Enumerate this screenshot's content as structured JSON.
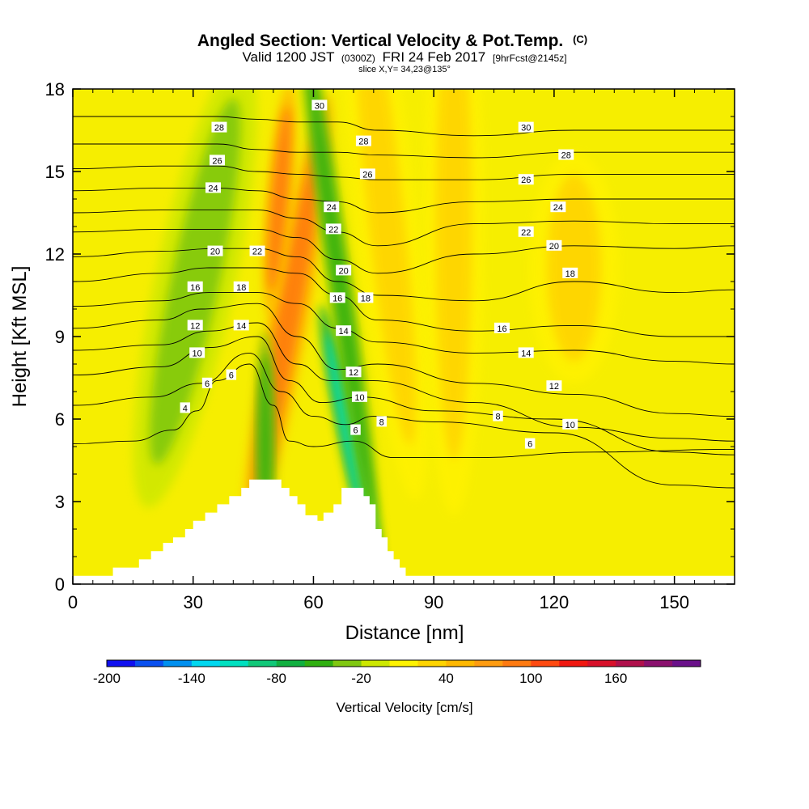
{
  "header": {
    "title": "Angled Section: Vertical Velocity & Pot.Temp.",
    "title_unit": "(C)",
    "valid_prefix": "Valid 1200 JST",
    "valid_utc": "(0300Z)",
    "valid_date": "FRI 24 Feb 2017",
    "forecast": "[9hrFcst@2145z]",
    "slice": "slice X,Y= 34,23@135°"
  },
  "chart_data": {
    "type": "heatmap",
    "xlabel": "Distance [nm]",
    "ylabel": "Height [Kft MSL]",
    "xlim": [
      0,
      165
    ],
    "ylim": [
      0,
      18
    ],
    "x_ticks": [
      0,
      30,
      60,
      90,
      120,
      150
    ],
    "y_ticks": [
      0,
      3,
      6,
      9,
      12,
      15,
      18
    ],
    "terrain": [
      [
        0,
        0.3
      ],
      [
        10,
        0.3
      ],
      [
        10,
        0.6
      ],
      [
        16.5,
        0.6
      ],
      [
        16.5,
        0.9
      ],
      [
        19.5,
        0.9
      ],
      [
        19.5,
        1.2
      ],
      [
        22.5,
        1.2
      ],
      [
        22.5,
        1.5
      ],
      [
        25,
        1.5
      ],
      [
        25,
        1.7
      ],
      [
        28,
        1.7
      ],
      [
        28,
        2.0
      ],
      [
        30,
        2.0
      ],
      [
        30,
        2.3
      ],
      [
        33,
        2.3
      ],
      [
        33,
        2.6
      ],
      [
        36,
        2.6
      ],
      [
        36,
        2.9
      ],
      [
        39,
        2.9
      ],
      [
        39,
        3.2
      ],
      [
        42,
        3.2
      ],
      [
        42,
        3.5
      ],
      [
        44,
        3.5
      ],
      [
        44,
        3.8
      ],
      [
        52,
        3.8
      ],
      [
        52,
        3.5
      ],
      [
        54,
        3.5
      ],
      [
        54,
        3.2
      ],
      [
        56,
        3.2
      ],
      [
        56,
        2.9
      ],
      [
        58,
        2.9
      ],
      [
        58,
        2.5
      ],
      [
        61,
        2.5
      ],
      [
        61,
        2.3
      ],
      [
        62.5,
        2.3
      ],
      [
        62.5,
        2.6
      ],
      [
        65,
        2.6
      ],
      [
        65,
        2.9
      ],
      [
        67,
        2.9
      ],
      [
        67,
        3.5
      ],
      [
        72.5,
        3.5
      ],
      [
        72.5,
        3.2
      ],
      [
        74,
        3.2
      ],
      [
        74,
        2.9
      ],
      [
        75.5,
        2.9
      ],
      [
        75.5,
        2.0
      ],
      [
        77,
        2.0
      ],
      [
        77,
        1.7
      ],
      [
        78.5,
        1.7
      ],
      [
        78.5,
        1.2
      ],
      [
        80,
        1.2
      ],
      [
        80,
        0.9
      ],
      [
        81.5,
        0.9
      ],
      [
        81.5,
        0.6
      ],
      [
        83,
        0.6
      ],
      [
        83,
        0.3
      ],
      [
        165,
        0.3
      ]
    ],
    "velocity_features": [
      {
        "kind": "updraft",
        "x": 53.5,
        "y": 9.5,
        "w": 4,
        "h": 8,
        "angle": 10,
        "value": 90
      },
      {
        "kind": "updraft",
        "x": 51.5,
        "y": 14.0,
        "w": 2.6,
        "h": 4,
        "angle": 5,
        "value": 80
      },
      {
        "kind": "downdraft",
        "x": 69.5,
        "y": 5.0,
        "w": 2.2,
        "h": 5,
        "angle": -12,
        "value": -110
      },
      {
        "kind": "downdraft",
        "x": 66.5,
        "y": 11.0,
        "w": 2.5,
        "h": 10,
        "angle": -8,
        "value": -50
      },
      {
        "kind": "downdraft",
        "x": 48.0,
        "y": 5.0,
        "w": 2.0,
        "h": 4,
        "angle": 0,
        "value": -50
      },
      {
        "kind": "downdraft",
        "x": 30.5,
        "y": 11.0,
        "w": 8,
        "h": 8,
        "angle": 12,
        "value": -30
      },
      {
        "kind": "updraft",
        "x": 78.0,
        "y": 13.5,
        "w": 6,
        "h": 10,
        "angle": -6,
        "value": 30
      },
      {
        "kind": "updraft",
        "x": 95.0,
        "y": 13.0,
        "w": 6,
        "h": 10,
        "angle": 0,
        "value": 25
      },
      {
        "kind": "updraft",
        "x": 125.0,
        "y": 11.5,
        "w": 9,
        "h": 4,
        "angle": 0,
        "value": 20
      }
    ],
    "isentropes": [
      {
        "level": 4,
        "points": [
          [
            0,
            5.1
          ],
          [
            15,
            5.2
          ],
          [
            25,
            5.6
          ],
          [
            31,
            6.3
          ],
          [
            36,
            7.4
          ],
          [
            44,
            8.0
          ],
          [
            50,
            6.5
          ],
          [
            54,
            5.2
          ],
          [
            60,
            5.0
          ],
          [
            70,
            5.2
          ],
          [
            80,
            4.6
          ],
          [
            100,
            4.6
          ],
          [
            130,
            4.8
          ],
          [
            165,
            4.9
          ]
        ]
      },
      {
        "level": 6,
        "points": [
          [
            0,
            6.5
          ],
          [
            20,
            6.8
          ],
          [
            32,
            7.3
          ],
          [
            44,
            8.4
          ],
          [
            52,
            7.0
          ],
          [
            60,
            6.1
          ],
          [
            68,
            5.8
          ],
          [
            75,
            6.1
          ],
          [
            90,
            5.9
          ],
          [
            120,
            5.5
          ],
          [
            150,
            3.6
          ],
          [
            165,
            3.5
          ]
        ]
      },
      {
        "level": 8,
        "points": [
          [
            0,
            7.6
          ],
          [
            22,
            7.9
          ],
          [
            34,
            8.6
          ],
          [
            46,
            9.0
          ],
          [
            54,
            7.4
          ],
          [
            62,
            6.6
          ],
          [
            72,
            6.8
          ],
          [
            90,
            6.3
          ],
          [
            120,
            6.0
          ],
          [
            150,
            4.8
          ],
          [
            165,
            4.7
          ]
        ]
      },
      {
        "level": 10,
        "points": [
          [
            0,
            8.5
          ],
          [
            22,
            8.7
          ],
          [
            34,
            9.2
          ],
          [
            46,
            9.5
          ],
          [
            56,
            8.0
          ],
          [
            64,
            7.4
          ],
          [
            74,
            7.4
          ],
          [
            100,
            6.6
          ],
          [
            125,
            5.7
          ],
          [
            150,
            5.3
          ],
          [
            165,
            5.2
          ]
        ]
      },
      {
        "level": 12,
        "points": [
          [
            0,
            9.3
          ],
          [
            22,
            9.6
          ],
          [
            32,
            10.0
          ],
          [
            46,
            10.2
          ],
          [
            56,
            9.0
          ],
          [
            66,
            7.8
          ],
          [
            76,
            8.0
          ],
          [
            100,
            7.3
          ],
          [
            125,
            6.9
          ],
          [
            150,
            6.2
          ],
          [
            165,
            6.1
          ]
        ]
      },
      {
        "level": 14,
        "points": [
          [
            0,
            10.1
          ],
          [
            22,
            10.3
          ],
          [
            34,
            10.6
          ],
          [
            46,
            10.6
          ],
          [
            56,
            10.2
          ],
          [
            66,
            9.3
          ],
          [
            76,
            8.8
          ],
          [
            100,
            8.4
          ],
          [
            125,
            8.5
          ],
          [
            150,
            8.1
          ],
          [
            165,
            8.0
          ]
        ]
      },
      {
        "level": 16,
        "points": [
          [
            0,
            11.0
          ],
          [
            22,
            11.3
          ],
          [
            34,
            11.5
          ],
          [
            46,
            11.5
          ],
          [
            56,
            11.3
          ],
          [
            66,
            10.5
          ],
          [
            76,
            9.6
          ],
          [
            100,
            9.2
          ],
          [
            125,
            9.4
          ],
          [
            150,
            9.0
          ],
          [
            165,
            9.0
          ]
        ]
      },
      {
        "level": 18,
        "points": [
          [
            0,
            11.9
          ],
          [
            22,
            12.1
          ],
          [
            36,
            12.2
          ],
          [
            46,
            12.2
          ],
          [
            56,
            11.9
          ],
          [
            66,
            11.0
          ],
          [
            76,
            10.5
          ],
          [
            100,
            10.3
          ],
          [
            125,
            11.0
          ],
          [
            150,
            10.6
          ],
          [
            165,
            10.7
          ]
        ]
      },
      {
        "level": 20,
        "points": [
          [
            0,
            12.8
          ],
          [
            22,
            12.9
          ],
          [
            36,
            12.9
          ],
          [
            46,
            12.9
          ],
          [
            56,
            12.6
          ],
          [
            66,
            11.8
          ],
          [
            76,
            11.3
          ],
          [
            100,
            12.0
          ],
          [
            125,
            12.3
          ],
          [
            150,
            12.2
          ],
          [
            165,
            12.3
          ]
        ]
      },
      {
        "level": 22,
        "points": [
          [
            0,
            13.5
          ],
          [
            22,
            13.6
          ],
          [
            36,
            13.6
          ],
          [
            46,
            13.6
          ],
          [
            56,
            13.3
          ],
          [
            66,
            12.8
          ],
          [
            76,
            12.3
          ],
          [
            100,
            13.1
          ],
          [
            125,
            13.2
          ],
          [
            150,
            13.1
          ],
          [
            165,
            13.1
          ]
        ]
      },
      {
        "level": 24,
        "points": [
          [
            0,
            14.3
          ],
          [
            22,
            14.4
          ],
          [
            36,
            14.4
          ],
          [
            46,
            14.3
          ],
          [
            56,
            14.0
          ],
          [
            66,
            13.9
          ],
          [
            76,
            13.5
          ],
          [
            100,
            13.9
          ],
          [
            125,
            14.0
          ],
          [
            150,
            14.0
          ],
          [
            165,
            14.0
          ]
        ]
      },
      {
        "level": 26,
        "points": [
          [
            0,
            15.1
          ],
          [
            22,
            15.2
          ],
          [
            36,
            15.2
          ],
          [
            46,
            15.0
          ],
          [
            56,
            14.9
          ],
          [
            66,
            14.8
          ],
          [
            76,
            14.7
          ],
          [
            100,
            14.7
          ],
          [
            125,
            14.9
          ],
          [
            150,
            14.9
          ],
          [
            165,
            14.9
          ]
        ]
      },
      {
        "level": 28,
        "points": [
          [
            0,
            16.0
          ],
          [
            22,
            16.0
          ],
          [
            36,
            16.0
          ],
          [
            46,
            15.8
          ],
          [
            56,
            15.7
          ],
          [
            66,
            15.7
          ],
          [
            76,
            15.6
          ],
          [
            100,
            15.5
          ],
          [
            125,
            15.7
          ],
          [
            150,
            15.7
          ],
          [
            165,
            15.7
          ]
        ]
      },
      {
        "level": 30,
        "points": [
          [
            0,
            17.0
          ],
          [
            22,
            17.0
          ],
          [
            36,
            17.0
          ],
          [
            46,
            16.9
          ],
          [
            56,
            16.8
          ],
          [
            66,
            16.8
          ],
          [
            76,
            16.5
          ],
          [
            100,
            16.3
          ],
          [
            125,
            16.5
          ],
          [
            150,
            16.5
          ],
          [
            165,
            16.5
          ]
        ]
      }
    ],
    "contour_labels": [
      {
        "x": 28,
        "y": 6.4,
        "text": "4"
      },
      {
        "x": 33.5,
        "y": 7.3,
        "text": "6"
      },
      {
        "x": 39.5,
        "y": 7.6,
        "text": "6"
      },
      {
        "x": 31,
        "y": 8.4,
        "text": "10"
      },
      {
        "x": 30.5,
        "y": 9.4,
        "text": "12"
      },
      {
        "x": 42,
        "y": 9.4,
        "text": "14"
      },
      {
        "x": 30.5,
        "y": 10.8,
        "text": "16"
      },
      {
        "x": 42,
        "y": 10.8,
        "text": "18"
      },
      {
        "x": 35.5,
        "y": 12.1,
        "text": "20"
      },
      {
        "x": 46,
        "y": 12.1,
        "text": "22"
      },
      {
        "x": 35,
        "y": 14.4,
        "text": "24"
      },
      {
        "x": 36,
        "y": 15.4,
        "text": "26"
      },
      {
        "x": 36.5,
        "y": 16.6,
        "text": "28"
      },
      {
        "x": 61.5,
        "y": 17.4,
        "text": "30"
      },
      {
        "x": 72.5,
        "y": 16.1,
        "text": "28"
      },
      {
        "x": 73.5,
        "y": 14.9,
        "text": "26"
      },
      {
        "x": 64.5,
        "y": 13.7,
        "text": "24"
      },
      {
        "x": 65,
        "y": 12.9,
        "text": "22"
      },
      {
        "x": 67.5,
        "y": 11.4,
        "text": "20"
      },
      {
        "x": 66,
        "y": 10.4,
        "text": "16"
      },
      {
        "x": 73,
        "y": 10.4,
        "text": "18"
      },
      {
        "x": 67.5,
        "y": 9.2,
        "text": "14"
      },
      {
        "x": 70,
        "y": 7.7,
        "text": "12"
      },
      {
        "x": 71.5,
        "y": 6.8,
        "text": "10"
      },
      {
        "x": 70.5,
        "y": 5.6,
        "text": "6"
      },
      {
        "x": 77,
        "y": 5.9,
        "text": "8"
      },
      {
        "x": 113,
        "y": 16.6,
        "text": "30"
      },
      {
        "x": 123,
        "y": 15.6,
        "text": "28"
      },
      {
        "x": 113,
        "y": 14.7,
        "text": "26"
      },
      {
        "x": 121,
        "y": 13.7,
        "text": "24"
      },
      {
        "x": 113,
        "y": 12.8,
        "text": "22"
      },
      {
        "x": 120,
        "y": 12.3,
        "text": "20"
      },
      {
        "x": 124,
        "y": 11.3,
        "text": "18"
      },
      {
        "x": 107,
        "y": 9.3,
        "text": "16"
      },
      {
        "x": 113,
        "y": 8.4,
        "text": "14"
      },
      {
        "x": 120,
        "y": 7.2,
        "text": "12"
      },
      {
        "x": 106,
        "y": 6.1,
        "text": "8"
      },
      {
        "x": 124,
        "y": 5.8,
        "text": "10"
      },
      {
        "x": 114,
        "y": 5.1,
        "text": "6"
      }
    ]
  },
  "colorbar": {
    "colors": [
      "#1010f0",
      "#0a50f0",
      "#0090f0",
      "#00d8f0",
      "#00e0c0",
      "#10c878",
      "#10b040",
      "#30b010",
      "#80c810",
      "#cde800",
      "#fff200",
      "#ffd400",
      "#ffb800",
      "#ff9c10",
      "#ff7a10",
      "#ff4a10",
      "#f01810",
      "#d8102a",
      "#b0104c",
      "#8a106e",
      "#6a108a"
    ],
    "labels": [
      "-200",
      "-140",
      "-80",
      "-20",
      "40",
      "100",
      "160"
    ],
    "title": "Vertical Velocity [cm/s]"
  }
}
